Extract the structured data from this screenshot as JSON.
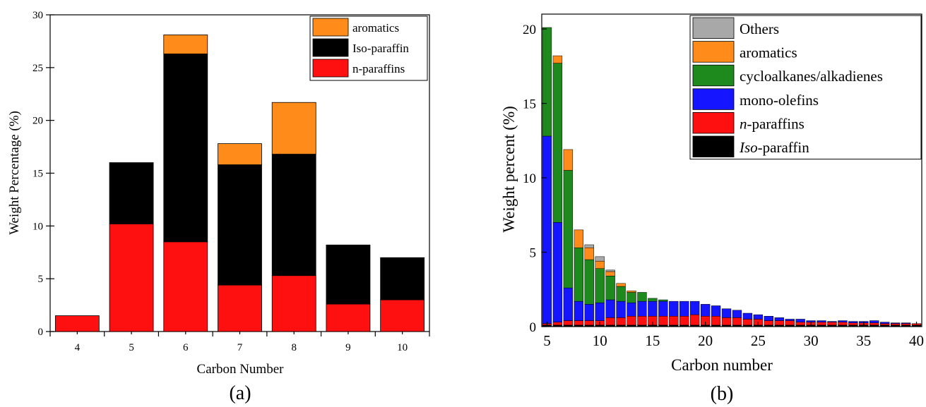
{
  "colors": {
    "others": "#a8a8a8",
    "aromatics": "#ff8c1a",
    "cycloalkanes": "#1e8a1e",
    "mono_olefins": "#1515ff",
    "n_paraffins": "#ff1010",
    "iso_paraffin": "#000000"
  },
  "chart_data": [
    {
      "type": "bar",
      "stacked": true,
      "panel_label": "(a)",
      "xlabel": "Carbon Number",
      "ylabel": "Weight Percentage (%)",
      "ylim": [
        0,
        30
      ],
      "yticks": [
        "0",
        "5",
        "10",
        "15",
        "20",
        "25",
        "30"
      ],
      "categories": [
        "4",
        "5",
        "6",
        "7",
        "8",
        "9",
        "10"
      ],
      "legend_position": "top-right",
      "legend": [
        "aromatics",
        "Iso-paraffin",
        "n-paraffins"
      ],
      "series": [
        {
          "name": "n-paraffins",
          "color_key": "n_paraffins",
          "values": [
            1.5,
            10.2,
            8.5,
            4.4,
            5.3,
            2.6,
            3.0
          ]
        },
        {
          "name": "Iso-paraffin",
          "color_key": "iso_paraffin",
          "values": [
            0,
            5.8,
            17.8,
            11.4,
            11.5,
            5.6,
            4.0
          ]
        },
        {
          "name": "aromatics",
          "color_key": "aromatics",
          "values": [
            0,
            0,
            1.8,
            2.0,
            4.9,
            0,
            0
          ]
        }
      ]
    },
    {
      "type": "bar",
      "stacked": true,
      "panel_label": "(b)",
      "xlabel": "Carbon number",
      "ylabel": "Weight percent (%)",
      "ylim": [
        0,
        21
      ],
      "yticks": [
        "0",
        "5",
        "10",
        "15",
        "20"
      ],
      "xticks": [
        "5",
        "10",
        "15",
        "20",
        "25",
        "30",
        "35",
        "40"
      ],
      "x": [
        5,
        6,
        7,
        8,
        9,
        10,
        11,
        12,
        13,
        14,
        15,
        16,
        17,
        18,
        19,
        20,
        21,
        22,
        23,
        24,
        25,
        26,
        27,
        28,
        29,
        30,
        31,
        32,
        33,
        34,
        35,
        36,
        37,
        38,
        39,
        40
      ],
      "legend_position": "top-right",
      "legend": [
        {
          "text": "Others",
          "color_key": "others"
        },
        {
          "text": "aromatics",
          "color_key": "aromatics"
        },
        {
          "text": "cycloalkanes/alkadienes",
          "color_key": "cycloalkanes"
        },
        {
          "text": "mono-olefins",
          "color_key": "mono_olefins"
        },
        {
          "prefix": "n",
          "text": "-paraffins",
          "color_key": "n_paraffins"
        },
        {
          "prefix": "Iso",
          "text": "-paraffin",
          "color_key": "iso_paraffin"
        }
      ],
      "series": [
        {
          "name": "Iso-paraffin",
          "color_key": "iso_paraffin",
          "values": [
            0.1,
            0.1,
            0.1,
            0.1,
            0.1,
            0.1,
            0.1,
            0.1,
            0.1,
            0.1,
            0.1,
            0.1,
            0.1,
            0.1,
            0.1,
            0.1,
            0.1,
            0.1,
            0.1,
            0.1,
            0.1,
            0.1,
            0.1,
            0.1,
            0.1,
            0.1,
            0.1,
            0.1,
            0.1,
            0.1,
            0.1,
            0.1,
            0.1,
            0.1,
            0.1,
            0.1
          ]
        },
        {
          "name": "n-paraffins",
          "color_key": "n_paraffins",
          "values": [
            0.1,
            0.2,
            0.3,
            0.3,
            0.3,
            0.3,
            0.5,
            0.5,
            0.6,
            0.6,
            0.6,
            0.6,
            0.6,
            0.6,
            0.7,
            0.6,
            0.6,
            0.5,
            0.5,
            0.4,
            0.4,
            0.3,
            0.3,
            0.3,
            0.2,
            0.2,
            0.2,
            0.2,
            0.2,
            0.15,
            0.15,
            0.15,
            0.1,
            0.1,
            0.1,
            0.1
          ]
        },
        {
          "name": "mono-olefins",
          "color_key": "mono_olefins",
          "values": [
            12.6,
            6.7,
            2.2,
            1.3,
            1.1,
            1.2,
            1.2,
            1.1,
            0.9,
            1.0,
            1.0,
            1.0,
            1.0,
            1.0,
            0.9,
            0.8,
            0.7,
            0.6,
            0.5,
            0.4,
            0.3,
            0.3,
            0.2,
            0.1,
            0.2,
            0.1,
            0.1,
            0.05,
            0.1,
            0.1,
            0.1,
            0.15,
            0.1,
            0.05,
            0.05,
            0.0
          ]
        },
        {
          "name": "cycloalkanes/alkadienes",
          "color_key": "cycloalkanes",
          "values": [
            7.3,
            10.7,
            7.9,
            3.6,
            3.0,
            2.3,
            1.6,
            1.0,
            0.7,
            0.6,
            0.2,
            0.1,
            0,
            0,
            0,
            0,
            0,
            0,
            0,
            0,
            0,
            0,
            0,
            0,
            0,
            0,
            0,
            0,
            0,
            0,
            0,
            0,
            0,
            0,
            0,
            0
          ]
        },
        {
          "name": "aromatics",
          "color_key": "aromatics",
          "values": [
            0,
            0.5,
            1.4,
            1.2,
            0.8,
            0.5,
            0.3,
            0.2,
            0.1,
            0,
            0,
            0,
            0,
            0,
            0,
            0,
            0,
            0,
            0,
            0,
            0,
            0,
            0,
            0,
            0,
            0,
            0,
            0,
            0,
            0,
            0,
            0,
            0,
            0,
            0,
            0
          ]
        },
        {
          "name": "Others",
          "color_key": "others",
          "values": [
            0,
            0,
            0,
            0,
            0.2,
            0.3,
            0.1,
            0,
            0,
            0,
            0,
            0,
            0,
            0,
            0,
            0,
            0,
            0,
            0,
            0,
            0,
            0,
            0,
            0,
            0,
            0,
            0,
            0,
            0,
            0,
            0,
            0,
            0,
            0,
            0,
            0
          ]
        }
      ]
    }
  ]
}
